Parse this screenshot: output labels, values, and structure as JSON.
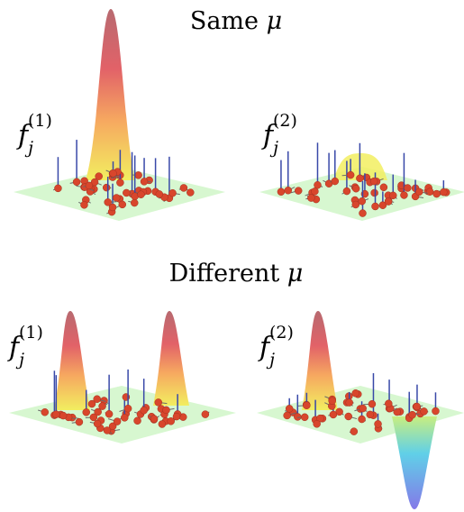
{
  "sections": [
    {
      "title": "Same",
      "symbol": "μ",
      "panels": [
        {
          "label": "f",
          "sub": "j",
          "sup": "(1)"
        },
        {
          "label": "f",
          "sub": "j",
          "sup": "(2)"
        }
      ]
    },
    {
      "title": "Different",
      "symbol": "μ",
      "panels": [
        {
          "label": "f",
          "sub": "j",
          "sup": "(1)"
        },
        {
          "label": "f",
          "sub": "j",
          "sup": "(2)"
        }
      ]
    }
  ]
}
